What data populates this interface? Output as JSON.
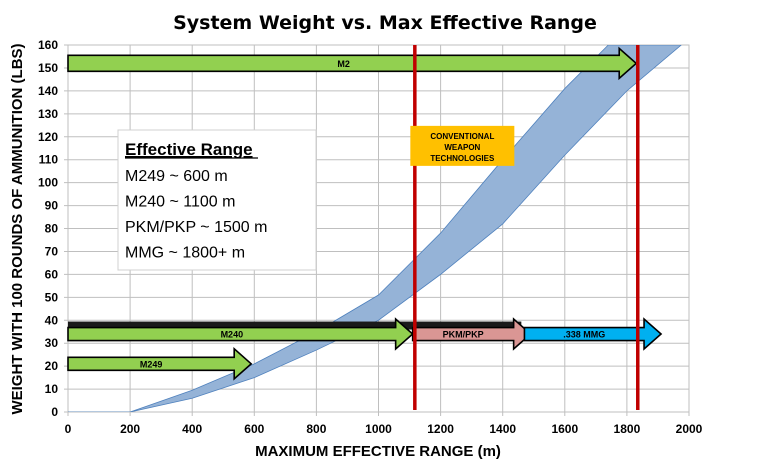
{
  "chart_data": {
    "type": "area",
    "title": "System Weight vs. Max Effective Range",
    "xlabel": "MAXIMUM EFFECTIVE RANGE (m)",
    "ylabel": "WEIGHT WITH 100 ROUNDS OF AMMUNITION (LBS)",
    "xlim": [
      0,
      2000
    ],
    "ylim": [
      0,
      160
    ],
    "xticks": [
      0,
      200,
      400,
      600,
      800,
      1000,
      1200,
      1400,
      1600,
      1800,
      2000
    ],
    "yticks": [
      0,
      10,
      20,
      30,
      40,
      50,
      60,
      70,
      80,
      90,
      100,
      110,
      120,
      130,
      140,
      150,
      160
    ],
    "grid": true,
    "band": {
      "name": "Conventional weapon technologies",
      "color": "#95B3D7",
      "upper": [
        [
          0,
          0
        ],
        [
          200,
          0
        ],
        [
          400,
          9.5
        ],
        [
          600,
          21
        ],
        [
          800,
          35
        ],
        [
          1000,
          51
        ],
        [
          1200,
          78
        ],
        [
          1400,
          110
        ],
        [
          1600,
          141
        ],
        [
          1740,
          160
        ]
      ],
      "lower": [
        [
          0,
          0
        ],
        [
          200,
          0
        ],
        [
          400,
          6
        ],
        [
          600,
          15
        ],
        [
          800,
          27
        ],
        [
          1000,
          40
        ],
        [
          1200,
          60
        ],
        [
          1400,
          82
        ],
        [
          1600,
          112
        ],
        [
          1800,
          140
        ],
        [
          1975,
          160
        ]
      ]
    },
    "arrows": [
      {
        "label": "M2",
        "x_start": 0,
        "x_end": 1830,
        "y": 152,
        "color": "#92D050"
      },
      {
        "label": "M249",
        "x_start": 0,
        "x_end": 590,
        "y": 21,
        "color": "#92D050"
      },
      {
        "label": "M240",
        "x_start": 0,
        "x_end": 1110,
        "y": 34,
        "color": "#92D050"
      },
      {
        "label": "PKM/PKP",
        "x_start": 1110,
        "x_end": 1490,
        "y": 34,
        "color": "#DA9694"
      },
      {
        "label": ".338 MMG",
        "x_start": 1470,
        "x_end": 1910,
        "y": 34,
        "color": "#00B0F0"
      }
    ],
    "black_bar": {
      "x_start": 0,
      "x_end": 1460,
      "y": 39
    },
    "vertical_lines": [
      {
        "x": 1117,
        "color": "#C00000"
      },
      {
        "x": 1835,
        "color": "#C00000"
      }
    ],
    "annotations": {
      "conventional": [
        "CONVENTIONAL",
        "WEAPON",
        "TECHNOLOGIES"
      ],
      "conventional_color": "#FFC000",
      "conventional_anchor": {
        "x": 1270,
        "y": 123
      },
      "effective_range_box": {
        "title": "Effective Range",
        "lines": [
          "M249 ~ 600 m",
          "M240 ~ 1100 m",
          "PKM/PKP ~ 1500 m",
          "MMG ~ 1800+ m"
        ]
      }
    }
  }
}
